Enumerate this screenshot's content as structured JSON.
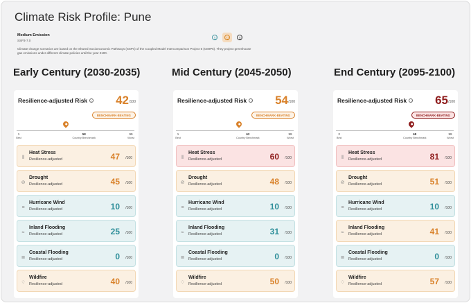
{
  "title": "Climate Risk Profile: Pune",
  "scenario": {
    "name": "Medium Emission",
    "code": "SSP3-7.0",
    "description": "Climate change scenarios are based on the Shared Socioeconomic Pathways (SSPs) of the Coupled Model Intercomparison Project 6 (CMIP6). They project greenhouse gas emissions under different climate policies until the year 2100.",
    "toggles": [
      "low-emission-face-icon",
      "medium-emission-face-icon",
      "high-emission-face-icon"
    ],
    "selected_toggle": 1
  },
  "colors": {
    "orange": "#d9822b",
    "teal": "#2f8f9a",
    "dark_red": "#8f1d1d"
  },
  "common": {
    "rr_label": "Resilience-adjusted Risk",
    "of100": "/100",
    "badge": "BENCHMARK-BEATING",
    "best": "Best",
    "worst": "Worst",
    "country_benchmark": "Country Benchmark",
    "row_sub": "Resilience-adjusted"
  },
  "periods": [
    {
      "label": "Early Century (2030-2035)",
      "score": "42",
      "tone": "orange",
      "scale": {
        "min": "1",
        "benchmark": "58",
        "max": "99",
        "marker": 42
      },
      "risks": [
        {
          "name": "Heat Stress",
          "value": "47",
          "tone": "orange",
          "icon": "thermometer-icon"
        },
        {
          "name": "Drought",
          "value": "45",
          "tone": "orange",
          "icon": "leaf-icon"
        },
        {
          "name": "Hurricane Wind",
          "value": "10",
          "tone": "teal",
          "icon": "wind-icon"
        },
        {
          "name": "Inland Flooding",
          "value": "25",
          "tone": "teal",
          "icon": "waves-icon"
        },
        {
          "name": "Coastal Flooding",
          "value": "0",
          "tone": "teal",
          "icon": "coast-icon"
        },
        {
          "name": "Wildfire",
          "value": "40",
          "tone": "orange",
          "icon": "flame-icon"
        }
      ]
    },
    {
      "label": "Mid Century (2045-2050)",
      "score": "54",
      "tone": "orange",
      "scale": {
        "min": "1",
        "benchmark": "62",
        "max": "99",
        "marker": 54
      },
      "risks": [
        {
          "name": "Heat Stress",
          "value": "60",
          "tone": "red",
          "icon": "thermometer-icon"
        },
        {
          "name": "Drought",
          "value": "48",
          "tone": "orange",
          "icon": "leaf-icon"
        },
        {
          "name": "Hurricane Wind",
          "value": "10",
          "tone": "teal",
          "icon": "wind-icon"
        },
        {
          "name": "Inland Flooding",
          "value": "31",
          "tone": "teal",
          "icon": "waves-icon"
        },
        {
          "name": "Coastal Flooding",
          "value": "0",
          "tone": "teal",
          "icon": "coast-icon"
        },
        {
          "name": "Wildfire",
          "value": "50",
          "tone": "orange",
          "icon": "flame-icon"
        }
      ]
    },
    {
      "label": "End Century (2095-2100)",
      "score": "65",
      "tone": "red",
      "scale": {
        "min": "2",
        "benchmark": "68",
        "max": "99",
        "marker": 65
      },
      "risks": [
        {
          "name": "Heat Stress",
          "value": "81",
          "tone": "red",
          "icon": "thermometer-icon"
        },
        {
          "name": "Drought",
          "value": "51",
          "tone": "orange",
          "icon": "leaf-icon"
        },
        {
          "name": "Hurricane Wind",
          "value": "10",
          "tone": "teal",
          "icon": "wind-icon"
        },
        {
          "name": "Inland Flooding",
          "value": "41",
          "tone": "orange",
          "icon": "waves-icon"
        },
        {
          "name": "Coastal Flooding",
          "value": "0",
          "tone": "teal",
          "icon": "coast-icon"
        },
        {
          "name": "Wildfire",
          "value": "57",
          "tone": "orange",
          "icon": "flame-icon"
        }
      ]
    }
  ]
}
